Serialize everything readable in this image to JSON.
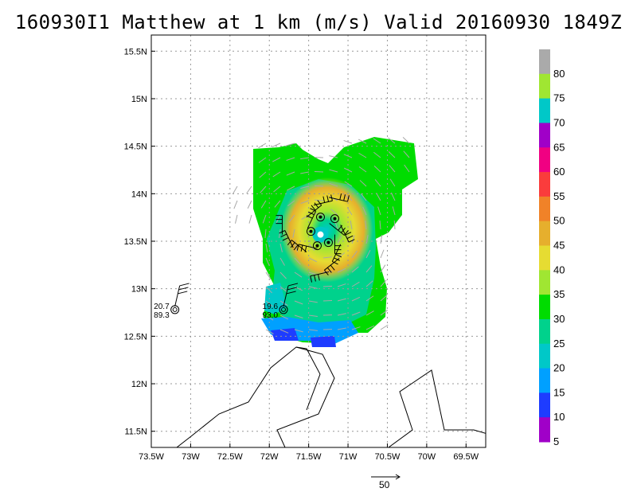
{
  "title": "160930I1 Matthew at 1 km (m/s) Valid 20160930  1849Z",
  "chart_data": {
    "type": "heatmap",
    "title": "160930I1 Matthew at 1 km (m/s) Valid 20160930  1849Z",
    "units": "m/s",
    "x_range": [
      -73.5,
      -69.25
    ],
    "y_range": [
      11.33,
      15.67
    ],
    "x_ticks": [
      {
        "v": -73.5,
        "label": "73.5W"
      },
      {
        "v": -73.0,
        "label": "73W"
      },
      {
        "v": -72.5,
        "label": "72.5W"
      },
      {
        "v": -72.0,
        "label": "72W"
      },
      {
        "v": -71.5,
        "label": "71.5W"
      },
      {
        "v": -71.0,
        "label": "71W"
      },
      {
        "v": -70.5,
        "label": "70.5W"
      },
      {
        "v": -70.0,
        "label": "70W"
      },
      {
        "v": -69.5,
        "label": "69.5W"
      }
    ],
    "y_ticks": [
      {
        "v": 11.5,
        "label": "11.5N"
      },
      {
        "v": 12.0,
        "label": "12N"
      },
      {
        "v": 12.5,
        "label": "12.5N"
      },
      {
        "v": 13.0,
        "label": "13N"
      },
      {
        "v": 13.5,
        "label": "13.5N"
      },
      {
        "v": 14.0,
        "label": "14N"
      },
      {
        "v": 14.5,
        "label": "14.5N"
      },
      {
        "v": 15.0,
        "label": "15N"
      },
      {
        "v": 15.5,
        "label": "15.5N"
      }
    ],
    "grid": true,
    "colorbar": {
      "labels": [
        "5",
        "10",
        "15",
        "20",
        "25",
        "30",
        "35",
        "40",
        "45",
        "50",
        "55",
        "60",
        "65",
        "70",
        "75",
        "80"
      ],
      "colors": [
        "#a000c8",
        "#1e3cff",
        "#00a0ff",
        "#00c8c8",
        "#00d28c",
        "#00dc00",
        "#a0e632",
        "#e6dc32",
        "#e6af2d",
        "#f08228",
        "#fa3c3c",
        "#f00082",
        "#a000c8",
        "#00c8c8",
        "#a0e632",
        "#aaaaaa"
      ]
    },
    "center": {
      "lon": -71.35,
      "lat": 13.57
    },
    "stations": [
      {
        "lon": -73.2,
        "lat": 12.78,
        "t": "20.7",
        "p": "89.3"
      },
      {
        "lon": -71.82,
        "lat": 12.78,
        "t": "19.6",
        "p": "93.0"
      }
    ],
    "reference_vector": "50"
  }
}
